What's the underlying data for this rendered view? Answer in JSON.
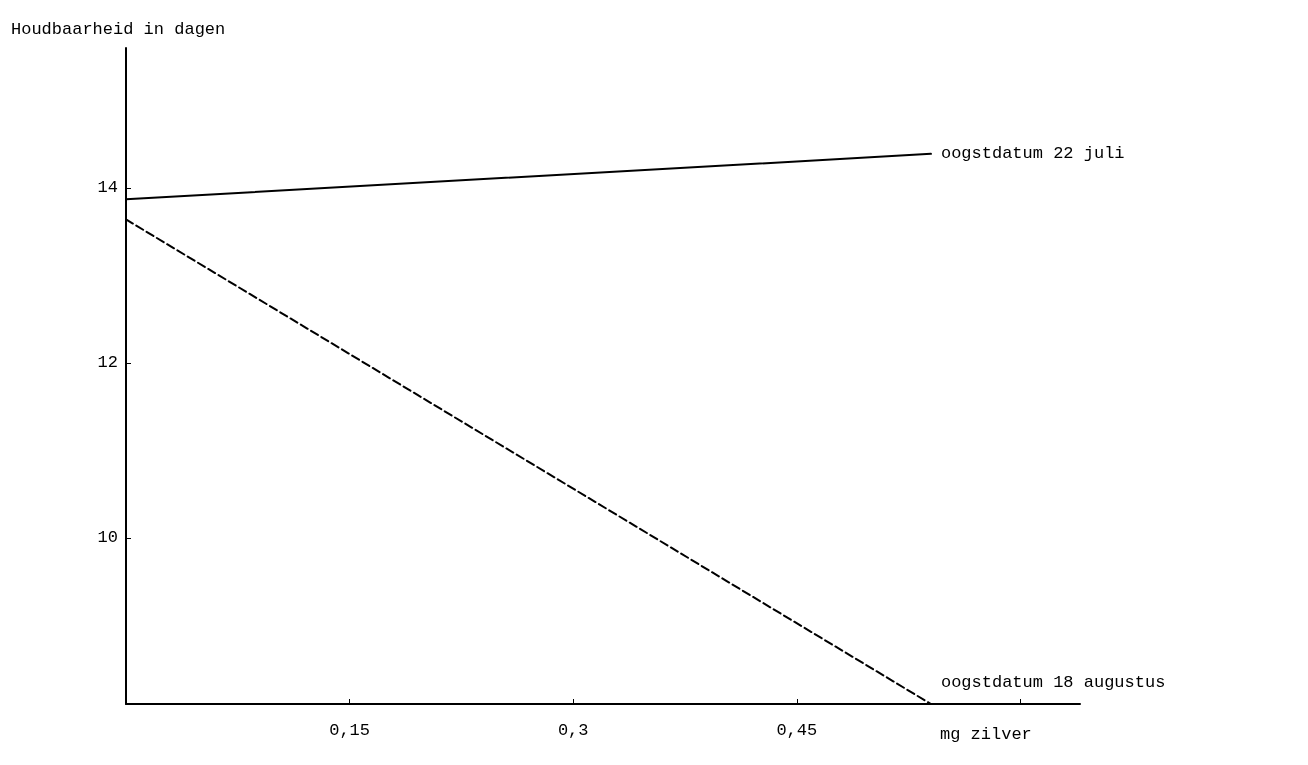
{
  "chart_data": {
    "type": "line",
    "xlabel": "mg zilver",
    "ylabel": "Houdbaarheid in dagen",
    "xlim": [
      0,
      0.64
    ],
    "xticks": [
      {
        "value": 0.15,
        "label": "0,15"
      },
      {
        "value": 0.3,
        "label": "0,3"
      },
      {
        "value": 0.45,
        "label": "0,45"
      },
      {
        "value": 0.6,
        "label": null
      }
    ],
    "ylim": [
      8.1,
      15.6
    ],
    "yticks": [
      10,
      12,
      14
    ],
    "grid": false,
    "legend": false,
    "marker": "none",
    "x": [
      0,
      0.54
    ],
    "series": [
      {
        "name": "oogstdatum 22 juli",
        "color": "#000000",
        "line_style": "solid",
        "values": [
          13.87,
          14.39
        ]
      },
      {
        "name": "oogstdatum 18 augustus",
        "color": "#000000",
        "line_style": "dashed",
        "values": [
          13.64,
          8.1
        ]
      }
    ]
  }
}
